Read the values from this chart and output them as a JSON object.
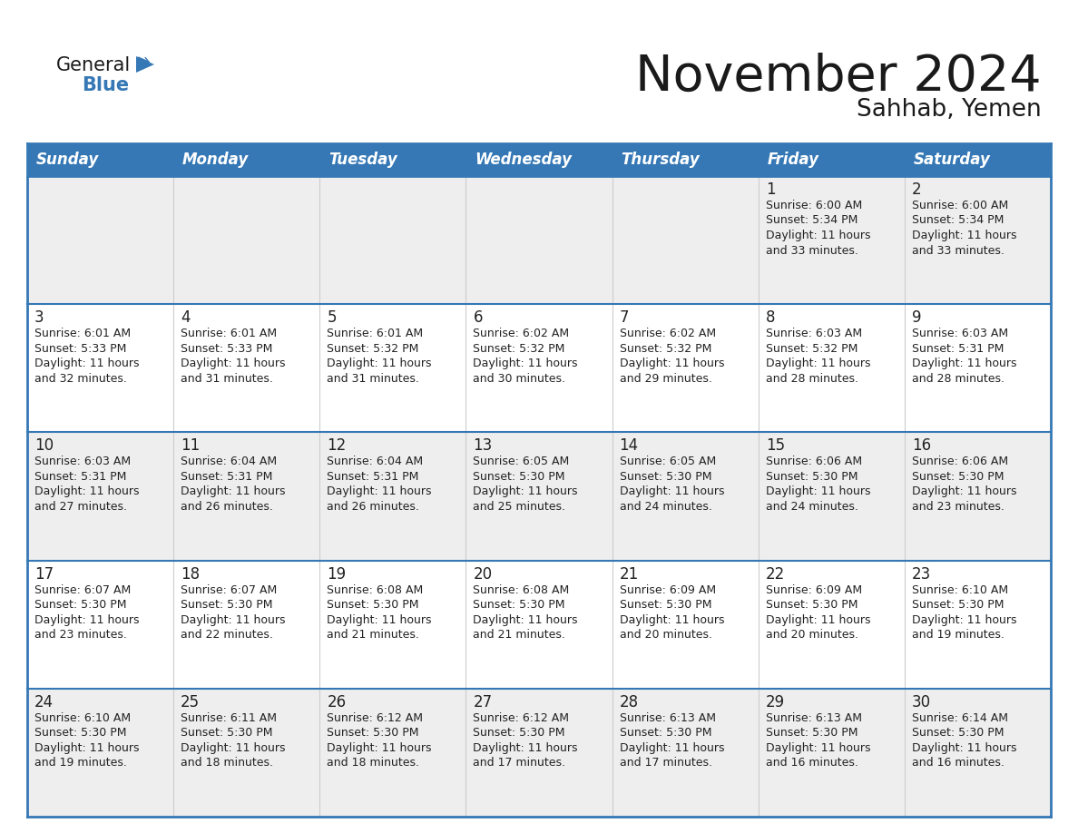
{
  "title": "November 2024",
  "subtitle": "Sahhab, Yemen",
  "header_color": "#3578b5",
  "header_text_color": "#ffffff",
  "row_bg_odd": "#eeeeee",
  "row_bg_even": "#ffffff",
  "border_color": "#3578b5",
  "text_color": "#222222",
  "day_headers": [
    "Sunday",
    "Monday",
    "Tuesday",
    "Wednesday",
    "Thursday",
    "Friday",
    "Saturday"
  ],
  "days": [
    {
      "day": 1,
      "col": 5,
      "row": 0,
      "sunrise": "6:00 AM",
      "sunset": "5:34 PM",
      "daylight_h": "11 hours",
      "daylight_m": "33 minutes."
    },
    {
      "day": 2,
      "col": 6,
      "row": 0,
      "sunrise": "6:00 AM",
      "sunset": "5:34 PM",
      "daylight_h": "11 hours",
      "daylight_m": "33 minutes."
    },
    {
      "day": 3,
      "col": 0,
      "row": 1,
      "sunrise": "6:01 AM",
      "sunset": "5:33 PM",
      "daylight_h": "11 hours",
      "daylight_m": "32 minutes."
    },
    {
      "day": 4,
      "col": 1,
      "row": 1,
      "sunrise": "6:01 AM",
      "sunset": "5:33 PM",
      "daylight_h": "11 hours",
      "daylight_m": "31 minutes."
    },
    {
      "day": 5,
      "col": 2,
      "row": 1,
      "sunrise": "6:01 AM",
      "sunset": "5:32 PM",
      "daylight_h": "11 hours",
      "daylight_m": "31 minutes."
    },
    {
      "day": 6,
      "col": 3,
      "row": 1,
      "sunrise": "6:02 AM",
      "sunset": "5:32 PM",
      "daylight_h": "11 hours",
      "daylight_m": "30 minutes."
    },
    {
      "day": 7,
      "col": 4,
      "row": 1,
      "sunrise": "6:02 AM",
      "sunset": "5:32 PM",
      "daylight_h": "11 hours",
      "daylight_m": "29 minutes."
    },
    {
      "day": 8,
      "col": 5,
      "row": 1,
      "sunrise": "6:03 AM",
      "sunset": "5:32 PM",
      "daylight_h": "11 hours",
      "daylight_m": "28 minutes."
    },
    {
      "day": 9,
      "col": 6,
      "row": 1,
      "sunrise": "6:03 AM",
      "sunset": "5:31 PM",
      "daylight_h": "11 hours",
      "daylight_m": "28 minutes."
    },
    {
      "day": 10,
      "col": 0,
      "row": 2,
      "sunrise": "6:03 AM",
      "sunset": "5:31 PM",
      "daylight_h": "11 hours",
      "daylight_m": "27 minutes."
    },
    {
      "day": 11,
      "col": 1,
      "row": 2,
      "sunrise": "6:04 AM",
      "sunset": "5:31 PM",
      "daylight_h": "11 hours",
      "daylight_m": "26 minutes."
    },
    {
      "day": 12,
      "col": 2,
      "row": 2,
      "sunrise": "6:04 AM",
      "sunset": "5:31 PM",
      "daylight_h": "11 hours",
      "daylight_m": "26 minutes."
    },
    {
      "day": 13,
      "col": 3,
      "row": 2,
      "sunrise": "6:05 AM",
      "sunset": "5:30 PM",
      "daylight_h": "11 hours",
      "daylight_m": "25 minutes."
    },
    {
      "day": 14,
      "col": 4,
      "row": 2,
      "sunrise": "6:05 AM",
      "sunset": "5:30 PM",
      "daylight_h": "11 hours",
      "daylight_m": "24 minutes."
    },
    {
      "day": 15,
      "col": 5,
      "row": 2,
      "sunrise": "6:06 AM",
      "sunset": "5:30 PM",
      "daylight_h": "11 hours",
      "daylight_m": "24 minutes."
    },
    {
      "day": 16,
      "col": 6,
      "row": 2,
      "sunrise": "6:06 AM",
      "sunset": "5:30 PM",
      "daylight_h": "11 hours",
      "daylight_m": "23 minutes."
    },
    {
      "day": 17,
      "col": 0,
      "row": 3,
      "sunrise": "6:07 AM",
      "sunset": "5:30 PM",
      "daylight_h": "11 hours",
      "daylight_m": "23 minutes."
    },
    {
      "day": 18,
      "col": 1,
      "row": 3,
      "sunrise": "6:07 AM",
      "sunset": "5:30 PM",
      "daylight_h": "11 hours",
      "daylight_m": "22 minutes."
    },
    {
      "day": 19,
      "col": 2,
      "row": 3,
      "sunrise": "6:08 AM",
      "sunset": "5:30 PM",
      "daylight_h": "11 hours",
      "daylight_m": "21 minutes."
    },
    {
      "day": 20,
      "col": 3,
      "row": 3,
      "sunrise": "6:08 AM",
      "sunset": "5:30 PM",
      "daylight_h": "11 hours",
      "daylight_m": "21 minutes."
    },
    {
      "day": 21,
      "col": 4,
      "row": 3,
      "sunrise": "6:09 AM",
      "sunset": "5:30 PM",
      "daylight_h": "11 hours",
      "daylight_m": "20 minutes."
    },
    {
      "day": 22,
      "col": 5,
      "row": 3,
      "sunrise": "6:09 AM",
      "sunset": "5:30 PM",
      "daylight_h": "11 hours",
      "daylight_m": "20 minutes."
    },
    {
      "day": 23,
      "col": 6,
      "row": 3,
      "sunrise": "6:10 AM",
      "sunset": "5:30 PM",
      "daylight_h": "11 hours",
      "daylight_m": "19 minutes."
    },
    {
      "day": 24,
      "col": 0,
      "row": 4,
      "sunrise": "6:10 AM",
      "sunset": "5:30 PM",
      "daylight_h": "11 hours",
      "daylight_m": "19 minutes."
    },
    {
      "day": 25,
      "col": 1,
      "row": 4,
      "sunrise": "6:11 AM",
      "sunset": "5:30 PM",
      "daylight_h": "11 hours",
      "daylight_m": "18 minutes."
    },
    {
      "day": 26,
      "col": 2,
      "row": 4,
      "sunrise": "6:12 AM",
      "sunset": "5:30 PM",
      "daylight_h": "11 hours",
      "daylight_m": "18 minutes."
    },
    {
      "day": 27,
      "col": 3,
      "row": 4,
      "sunrise": "6:12 AM",
      "sunset": "5:30 PM",
      "daylight_h": "11 hours",
      "daylight_m": "17 minutes."
    },
    {
      "day": 28,
      "col": 4,
      "row": 4,
      "sunrise": "6:13 AM",
      "sunset": "5:30 PM",
      "daylight_h": "11 hours",
      "daylight_m": "17 minutes."
    },
    {
      "day": 29,
      "col": 5,
      "row": 4,
      "sunrise": "6:13 AM",
      "sunset": "5:30 PM",
      "daylight_h": "11 hours",
      "daylight_m": "16 minutes."
    },
    {
      "day": 30,
      "col": 6,
      "row": 4,
      "sunrise": "6:14 AM",
      "sunset": "5:30 PM",
      "daylight_h": "11 hours",
      "daylight_m": "16 minutes."
    }
  ]
}
